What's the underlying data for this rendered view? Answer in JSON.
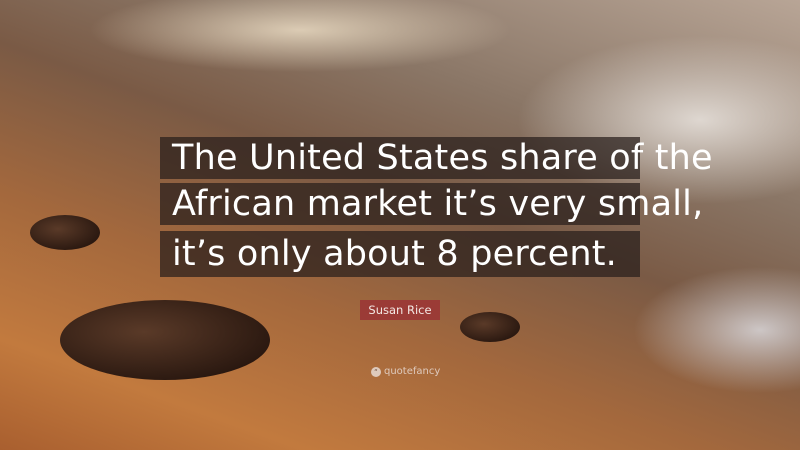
{
  "quote": {
    "lines": [
      "The United States share of the",
      "African market it’s very small,",
      "it’s only about 8 percent."
    ],
    "author": "Susan Rice"
  },
  "watermark": {
    "icon": "quote-icon",
    "text": "quotefancy"
  },
  "colors": {
    "author_badge": "#9b3b36",
    "quote_box": "#281e1c"
  }
}
